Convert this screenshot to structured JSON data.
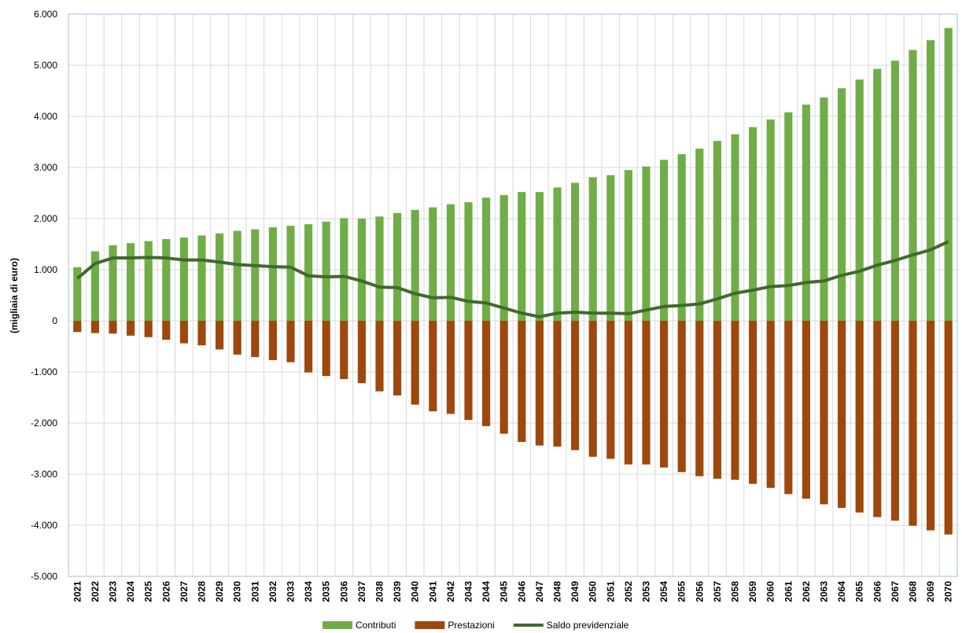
{
  "chart_data": {
    "type": "bar",
    "y_label": "(migliaia di euro)",
    "categories": [
      "2021",
      "2022",
      "2023",
      "2024",
      "2025",
      "2026",
      "2027",
      "2028",
      "2029",
      "2030",
      "2031",
      "2032",
      "2033",
      "2034",
      "2035",
      "2036",
      "2037",
      "2038",
      "2039",
      "2040",
      "2041",
      "2042",
      "2043",
      "2044",
      "2045",
      "2046",
      "2047",
      "2048",
      "2049",
      "2050",
      "2051",
      "2052",
      "2053",
      "2054",
      "2055",
      "2056",
      "2057",
      "2058",
      "2059",
      "2060",
      "2061",
      "2062",
      "2063",
      "2064",
      "2065",
      "2066",
      "2067",
      "2068",
      "2069",
      "2070"
    ],
    "series": [
      {
        "name": "Contributi",
        "type": "bar",
        "color": "#70ad47",
        "values": [
          1050,
          1360,
          1480,
          1520,
          1560,
          1600,
          1630,
          1670,
          1710,
          1760,
          1790,
          1830,
          1860,
          1890,
          1940,
          2010,
          2000,
          2040,
          2110,
          2170,
          2220,
          2280,
          2320,
          2410,
          2460,
          2520,
          2520,
          2610,
          2700,
          2810,
          2850,
          2950,
          3020,
          3150,
          3260,
          3370,
          3520,
          3650,
          3790,
          3940,
          4080,
          4230,
          4370,
          4550,
          4720,
          4930,
          5090,
          5300,
          5490,
          5730
        ]
      },
      {
        "name": "Prestazioni",
        "type": "bar",
        "color": "#9e480e",
        "values": [
          -220,
          -240,
          -250,
          -290,
          -320,
          -370,
          -440,
          -480,
          -560,
          -660,
          -710,
          -770,
          -810,
          -1010,
          -1080,
          -1140,
          -1220,
          -1380,
          -1460,
          -1640,
          -1770,
          -1820,
          -1940,
          -2060,
          -2210,
          -2370,
          -2440,
          -2460,
          -2530,
          -2660,
          -2700,
          -2810,
          -2810,
          -2870,
          -2960,
          -3040,
          -3090,
          -3110,
          -3190,
          -3270,
          -3390,
          -3480,
          -3590,
          -3660,
          -3750,
          -3840,
          -3910,
          -4010,
          -4100,
          -4180
        ]
      },
      {
        "name": "Saldo previdenziale",
        "type": "line",
        "color": "#3e6b2b",
        "values": [
          830,
          1120,
          1230,
          1230,
          1240,
          1230,
          1190,
          1190,
          1150,
          1100,
          1080,
          1060,
          1050,
          880,
          860,
          870,
          780,
          660,
          650,
          530,
          450,
          460,
          380,
          350,
          250,
          150,
          80,
          150,
          170,
          150,
          150,
          140,
          210,
          280,
          300,
          330,
          430,
          540,
          600,
          670,
          690,
          750,
          780,
          890,
          970,
          1090,
          1180,
          1290,
          1390,
          1550
        ]
      }
    ],
    "ylim": [
      -5000,
      6000
    ],
    "yticks": [
      {
        "value": -5000,
        "label": "-5.000"
      },
      {
        "value": -4000,
        "label": "-4.000"
      },
      {
        "value": -3000,
        "label": "-3.000"
      },
      {
        "value": -2000,
        "label": "-2.000"
      },
      {
        "value": -1000,
        "label": "-1.000"
      },
      0,
      {
        "value": 1000,
        "label": "1.000"
      },
      {
        "value": 2000,
        "label": "2.000"
      },
      {
        "value": 3000,
        "label": "3.000"
      },
      {
        "value": 4000,
        "label": "4.000"
      },
      {
        "value": 5000,
        "label": "5.000"
      },
      {
        "value": 6000,
        "label": "6.000"
      }
    ],
    "grid": true,
    "legend": "bottom"
  }
}
